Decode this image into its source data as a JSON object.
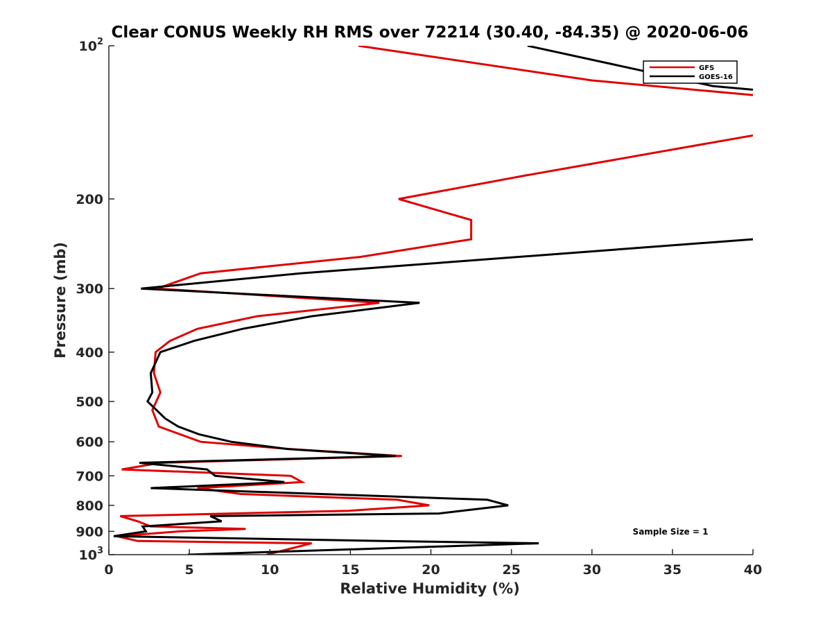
{
  "chart_data": {
    "type": "line",
    "title": "Clear CONUS Weekly RH RMS over 72214 (30.40, -84.35) @ 2020-06-06",
    "xlabel": "Relative Humidity (%)",
    "ylabel": "Pressure (mb)",
    "xlim": [
      0,
      40
    ],
    "ylim": [
      100,
      1000
    ],
    "yscale": "log",
    "xticks": [
      0,
      5,
      10,
      15,
      20,
      25,
      30,
      35,
      40
    ],
    "yticks": [
      {
        "value": 100,
        "base": "10",
        "exp": "2"
      },
      {
        "value": 200,
        "label": "200"
      },
      {
        "value": 300,
        "label": "300"
      },
      {
        "value": 400,
        "label": "400"
      },
      {
        "value": 500,
        "label": "500"
      },
      {
        "value": 600,
        "label": "600"
      },
      {
        "value": 700,
        "label": "700"
      },
      {
        "value": 800,
        "label": "800"
      },
      {
        "value": 900,
        "label": "900"
      },
      {
        "value": 1000,
        "base": "10",
        "exp": "3"
      }
    ],
    "legend_position": "top-right",
    "annotation": "Sample Size = 1",
    "series": [
      {
        "name": "GFS",
        "color": "#e00000",
        "points": [
          [
            15.5,
            100
          ],
          [
            30,
            117
          ],
          [
            40,
            125
          ],
          [
            null,
            null
          ],
          [
            40,
            150
          ],
          [
            25.8,
            180
          ],
          [
            18,
            200
          ],
          [
            22.5,
            220
          ],
          [
            22.5,
            240
          ],
          [
            15.6,
            260
          ],
          [
            5.7,
            280
          ],
          [
            3.0,
            300
          ],
          [
            16.8,
            320
          ],
          [
            9.2,
            340
          ],
          [
            5.5,
            360
          ],
          [
            3.8,
            380
          ],
          [
            2.9,
            400
          ],
          [
            2.8,
            440
          ],
          [
            3.2,
            480
          ],
          [
            2.7,
            520
          ],
          [
            3.1,
            560
          ],
          [
            5.7,
            600
          ],
          [
            11.2,
            620
          ],
          [
            18.2,
            640
          ],
          [
            3.2,
            660
          ],
          [
            0.8,
            680
          ],
          [
            11.3,
            700
          ],
          [
            12.0,
            720
          ],
          [
            5.5,
            740
          ],
          [
            8.2,
            760
          ],
          [
            17.9,
            780
          ],
          [
            19.9,
            800
          ],
          [
            14.9,
            820
          ],
          [
            0.7,
            840
          ],
          [
            1.8,
            860
          ],
          [
            2.6,
            880
          ],
          [
            8.5,
            890
          ],
          [
            4.4,
            900
          ],
          [
            0.5,
            920
          ],
          [
            1.8,
            940
          ],
          [
            12.6,
            950
          ],
          [
            9.8,
            1000
          ]
        ]
      },
      {
        "name": "GOES-16",
        "color": "#000000",
        "points": [
          [
            26,
            100
          ],
          [
            37.5,
            120
          ],
          [
            40,
            122
          ],
          [
            null,
            null
          ],
          [
            40,
            240
          ],
          [
            11.9,
            280
          ],
          [
            2.0,
            300
          ],
          [
            19.3,
            320
          ],
          [
            12.6,
            340
          ],
          [
            8.3,
            360
          ],
          [
            5.3,
            380
          ],
          [
            3.2,
            400
          ],
          [
            2.6,
            440
          ],
          [
            2.7,
            480
          ],
          [
            2.4,
            500
          ],
          [
            3.5,
            540
          ],
          [
            4.3,
            560
          ],
          [
            5.6,
            580
          ],
          [
            7.6,
            600
          ],
          [
            11.1,
            620
          ],
          [
            17.8,
            640
          ],
          [
            1.9,
            660
          ],
          [
            6.1,
            680
          ],
          [
            6.6,
            700
          ],
          [
            10.9,
            720
          ],
          [
            2.6,
            740
          ],
          [
            23.5,
            780
          ],
          [
            24.8,
            800
          ],
          [
            20.5,
            830
          ],
          [
            6.3,
            840
          ],
          [
            7.0,
            860
          ],
          [
            2.1,
            880
          ],
          [
            2.3,
            900
          ],
          [
            0.3,
            920
          ],
          [
            17.0,
            940
          ],
          [
            26.7,
            950
          ],
          [
            4.9,
            1000
          ]
        ]
      }
    ]
  }
}
